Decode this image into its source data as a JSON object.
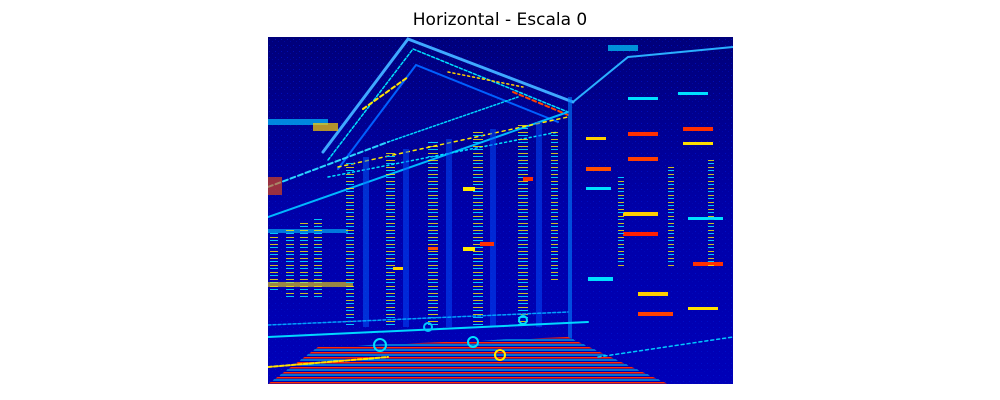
{
  "figure": {
    "title": "Horizontal - Escala 0",
    "colormap": "jet",
    "colors": {
      "background": "#00008f",
      "low": "#0000c8",
      "mid_low": "#0050ff",
      "mid": "#00dfff",
      "mid_high": "#ffff00",
      "high": "#ff3000",
      "max": "#800000"
    }
  }
}
